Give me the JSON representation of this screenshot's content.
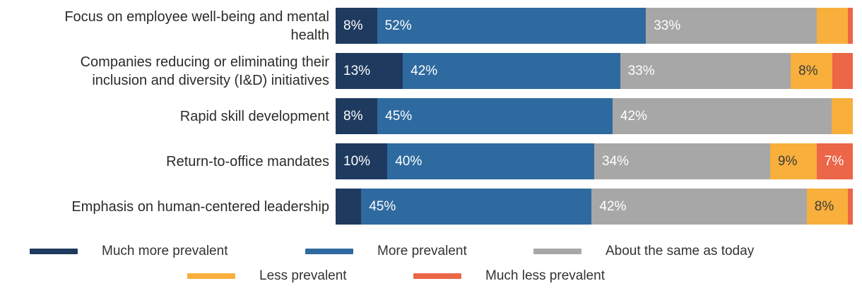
{
  "chart_data": {
    "type": "bar",
    "variant": "horizontal-stacked",
    "unit": "%",
    "grid": false,
    "legend_position": "bottom",
    "legend": [
      {
        "name": "legend-much-more-prevalent",
        "label": "Much more prevalent",
        "color": "#1E3A5F"
      },
      {
        "name": "legend-more-prevalent",
        "label": "More prevalent",
        "color": "#2E6A9F"
      },
      {
        "name": "legend-about-same",
        "label": "About the same as today",
        "color": "#A7A7A7"
      },
      {
        "name": "legend-less-prevalent",
        "label": "Less prevalent",
        "color": "#F8AF3C"
      },
      {
        "name": "legend-much-less-prevalent",
        "label": "Much less prevalent",
        "color": "#EB6747"
      }
    ],
    "rows": [
      {
        "category": "Focus on employee well-being and mental health",
        "category_lines": [
          "Focus on employee well-being and mental",
          "health"
        ],
        "values": [
          8,
          52,
          33,
          6,
          1
        ],
        "labels": [
          "8%",
          "52%",
          "33%",
          "",
          ""
        ]
      },
      {
        "category": "Companies reducing or eliminating their inclusion and diversity (I&D) initiatives",
        "category_lines": [
          "Companies reducing or eliminating their",
          "inclusion and diversity (I&D) initiatives"
        ],
        "values": [
          13,
          42,
          33,
          8,
          4
        ],
        "labels": [
          "13%",
          "42%",
          "33%",
          "8%",
          ""
        ]
      },
      {
        "category": "Rapid skill development",
        "category_lines": [
          "Rapid skill development"
        ],
        "values": [
          8,
          45,
          42,
          4,
          0
        ],
        "labels": [
          "8%",
          "45%",
          "42%",
          "",
          ""
        ]
      },
      {
        "category": "Return-to-office mandates",
        "category_lines": [
          "Return-to-office mandates"
        ],
        "values": [
          10,
          40,
          34,
          9,
          7
        ],
        "labels": [
          "10%",
          "40%",
          "34%",
          "9%",
          "7%"
        ]
      },
      {
        "category": "Emphasis on human-centered leadership",
        "category_lines": [
          "Emphasis on human-centered leadership"
        ],
        "values": [
          5,
          45,
          42,
          8,
          1
        ],
        "labels": [
          "",
          "45%",
          "42%",
          "8%",
          ""
        ]
      }
    ],
    "text_colors": {
      "on_dark_segments": "#ffffff",
      "on_yellow_segment": "#3b3b3b",
      "category": "#2b2b2b",
      "legend": "#333333"
    }
  }
}
